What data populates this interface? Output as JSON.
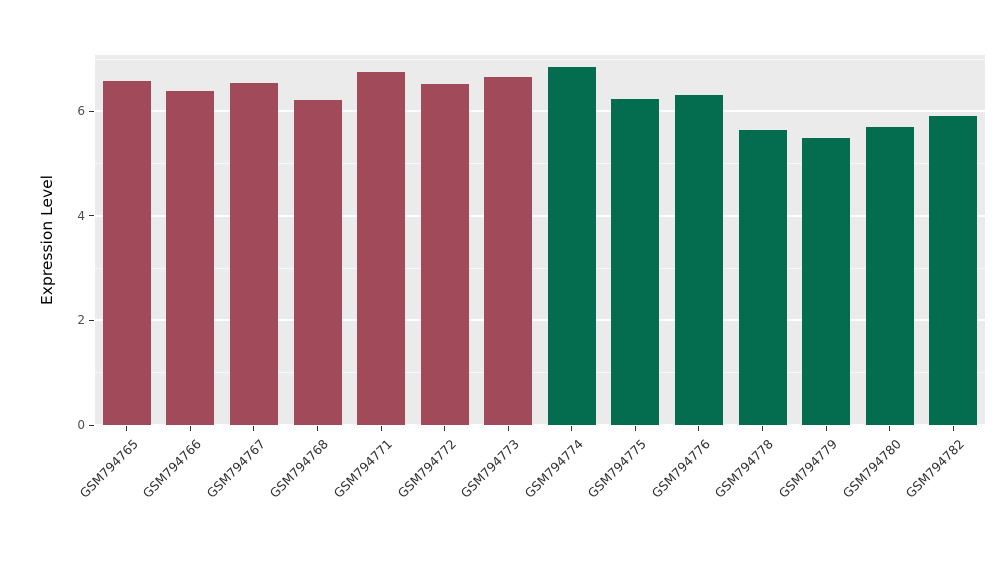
{
  "chart_data": {
    "type": "bar",
    "title": "",
    "xlabel": "",
    "ylabel": "Expression Level",
    "ylim": [
      0,
      7.08
    ],
    "yticks": [
      0,
      2,
      4,
      6
    ],
    "minor_ticks": [
      1,
      3,
      5,
      7
    ],
    "grid": true,
    "legend": false,
    "panel_background": "#EBEBEB",
    "categories": [
      "GSM794765",
      "GSM794766",
      "GSM794767",
      "GSM794768",
      "GSM794771",
      "GSM794772",
      "GSM794773",
      "GSM794774",
      "GSM794775",
      "GSM794776",
      "GSM794778",
      "GSM794779",
      "GSM794780",
      "GSM794782"
    ],
    "values": [
      6.58,
      6.4,
      6.55,
      6.22,
      6.75,
      6.52,
      6.65,
      6.85,
      6.24,
      6.31,
      5.65,
      5.49,
      5.71,
      5.91
    ],
    "colors": [
      "#A04A5A",
      "#A04A5A",
      "#A04A5A",
      "#A04A5A",
      "#A04A5A",
      "#A04A5A",
      "#A04A5A",
      "#056D4F",
      "#056D4F",
      "#056D4F",
      "#056D4F",
      "#056D4F",
      "#056D4F",
      "#056D4F"
    ],
    "palette": {
      "group1": "#A04A5A",
      "group2": "#056D4F"
    }
  }
}
